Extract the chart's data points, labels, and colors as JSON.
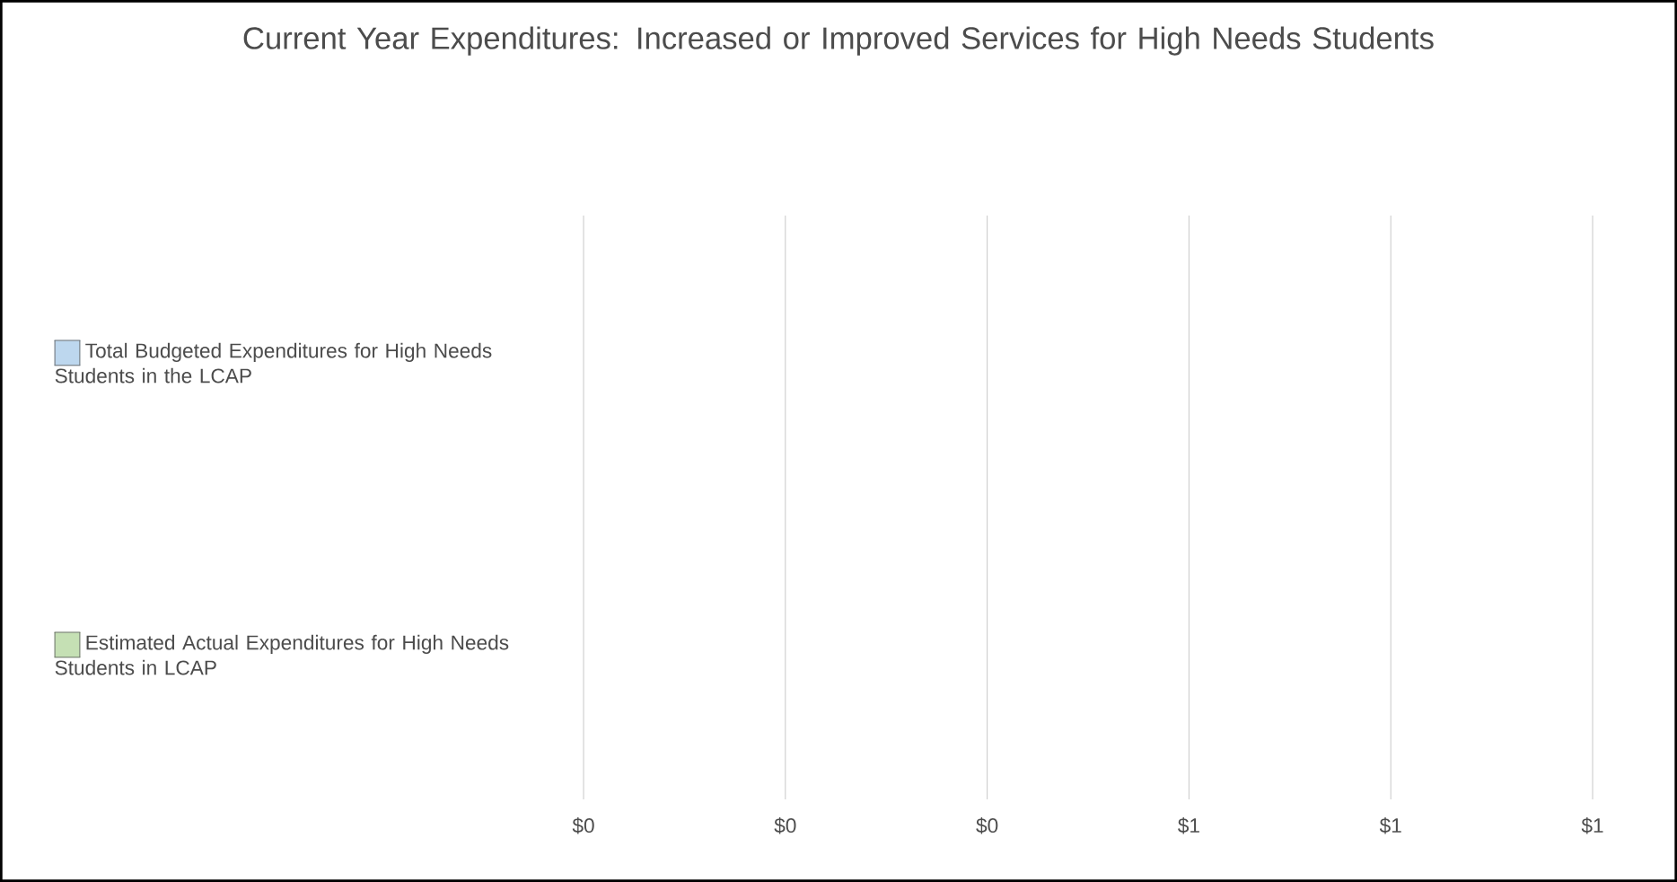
{
  "chart_data": {
    "type": "bar",
    "orientation": "horizontal",
    "title": "Current Year Expenditures: Increased or Improved Services for High Needs Students",
    "categories": [
      "Total Budgeted Expenditures for High Needs Students in the LCAP",
      "Estimated Actual Expenditures for High Needs Students in LCAP"
    ],
    "values": [
      0,
      0
    ],
    "colors": [
      "#bdd7ee",
      "#c5e0b4"
    ],
    "xlim": [
      0,
      1
    ],
    "xticks": [
      {
        "value": 0,
        "label": "$0"
      },
      {
        "value": 0.2,
        "label": "$0"
      },
      {
        "value": 0.4,
        "label": "$0"
      },
      {
        "value": 0.6,
        "label": "$1"
      },
      {
        "value": 0.8,
        "label": "$1"
      },
      {
        "value": 1,
        "label": "$1"
      }
    ],
    "grid": "x"
  }
}
